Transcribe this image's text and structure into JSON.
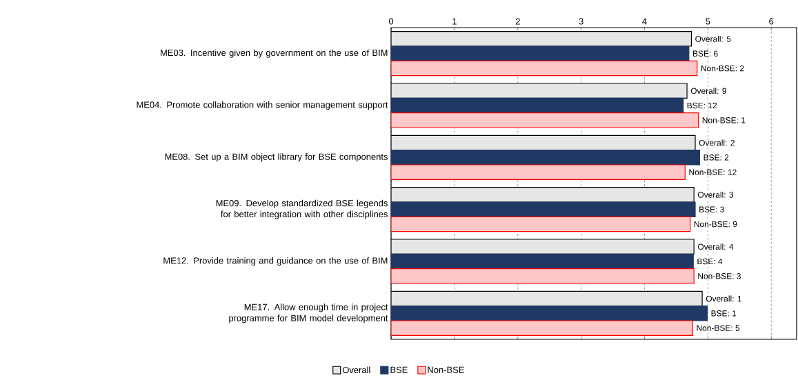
{
  "chart_data": {
    "type": "bar",
    "orientation": "horizontal",
    "categories": [
      "ME03. Incentive given by government on the use of BIM",
      "ME04. Promote collaboration with senior management support",
      "ME08. Set up a BIM object library for BSE components",
      "ME09. Develop standardized BSE legends for better integration with other disciplines",
      "ME12. Provide training and guidance on the use of BIM",
      "ME17. Allow enough time in project programme for BIM model development"
    ],
    "series": [
      {
        "name": "Overall",
        "color": "#e6e6e6",
        "values": [
          4.74,
          4.67,
          4.8,
          4.78,
          4.78,
          4.91
        ]
      },
      {
        "name": "BSE",
        "color": "#1f3864",
        "values": [
          4.7,
          4.61,
          4.87,
          4.8,
          4.77,
          4.99
        ]
      },
      {
        "name": "Non-BSE",
        "color": "#ffc7c7",
        "values": [
          4.83,
          4.85,
          4.64,
          4.72,
          4.78,
          4.76
        ]
      }
    ],
    "annotations": [
      "Overall: 5",
      "BSE: 6",
      "Non-BSE: 2",
      "Overall: 9",
      "BSE: 12",
      "Non-BSE: 1",
      "Overall: 2",
      "BSE: 2",
      "Non-BSE: 12",
      "Overall: 3",
      "BSE: 3",
      "Non-BSE: 9",
      "Overall: 4",
      "BSE: 4",
      "Non-BSE: 3",
      "Overall: 1",
      "BSE: 1",
      "Non-BSE: 5"
    ],
    "xlim": [
      0,
      6.4
    ],
    "xticks": [
      0,
      1,
      2,
      3,
      4,
      5,
      6
    ],
    "grid": "x",
    "legend": "bottom"
  }
}
